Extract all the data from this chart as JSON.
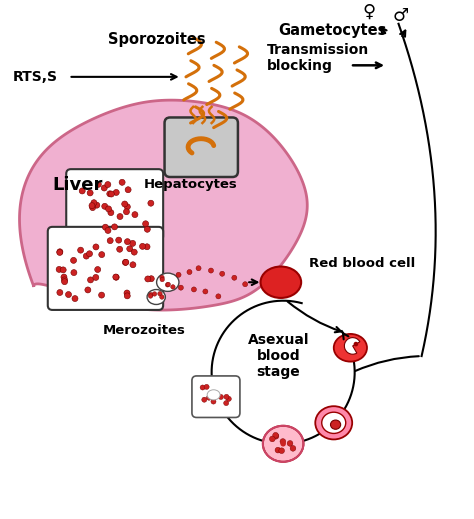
{
  "background_color": "#ffffff",
  "liver_color": "#f0b0d0",
  "liver_edge_color": "#cc6688",
  "sporozoite_color": "#d4700a",
  "merozoite_color": "#cc2222",
  "rbc_color": "#dd2222",
  "fig_width": 4.74,
  "fig_height": 5.19,
  "dpi": 100,
  "text_sporozoites": "Sporozoites",
  "text_rts": "RTS,S",
  "text_liver": "Liver",
  "text_hepatocytes": "Hepatocytes",
  "text_merozoites": "Merozoites",
  "text_rbc": "Red blood cell",
  "text_asexual": "Asexual\nblood\nstage",
  "text_gametocytes": "Gametocytes",
  "text_transmission": "Transmission\nblocking"
}
